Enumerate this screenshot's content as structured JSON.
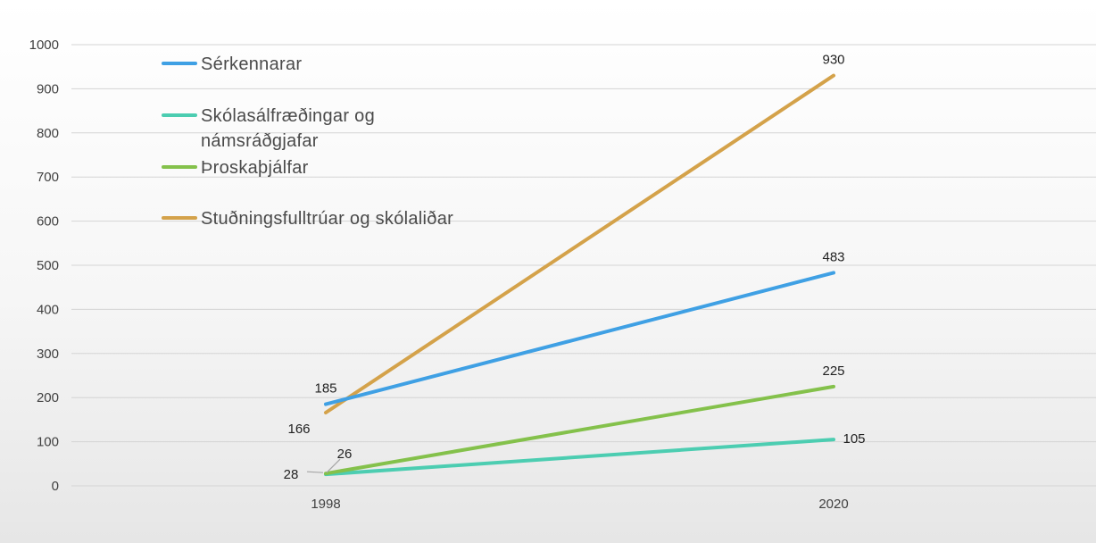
{
  "chart_data": {
    "type": "line",
    "x": [
      "1998",
      "2020"
    ],
    "ylim": [
      0,
      1000
    ],
    "yticks": [
      0,
      100,
      200,
      300,
      400,
      500,
      600,
      700,
      800,
      900,
      1000
    ],
    "grid": true,
    "legend_position": "top-left",
    "series": [
      {
        "name": "Sérkennarar",
        "values": [
          185,
          483
        ],
        "color": "#3fa0e4",
        "labels": [
          "185",
          "483"
        ]
      },
      {
        "name": "Skólasálfræðingar og námsráðgjafar",
        "values": [
          26,
          105
        ],
        "color": "#4ccdb1",
        "labels": [
          "26",
          "105"
        ]
      },
      {
        "name": "Þroskaþjálfar",
        "values": [
          28,
          225
        ],
        "color": "#84c14b",
        "labels": [
          "28",
          "225"
        ]
      },
      {
        "name": "Stuðningsfulltrúar og skólaliðar",
        "values": [
          166,
          930
        ],
        "color": "#d4a24a",
        "labels": [
          "166",
          "930"
        ]
      }
    ]
  }
}
